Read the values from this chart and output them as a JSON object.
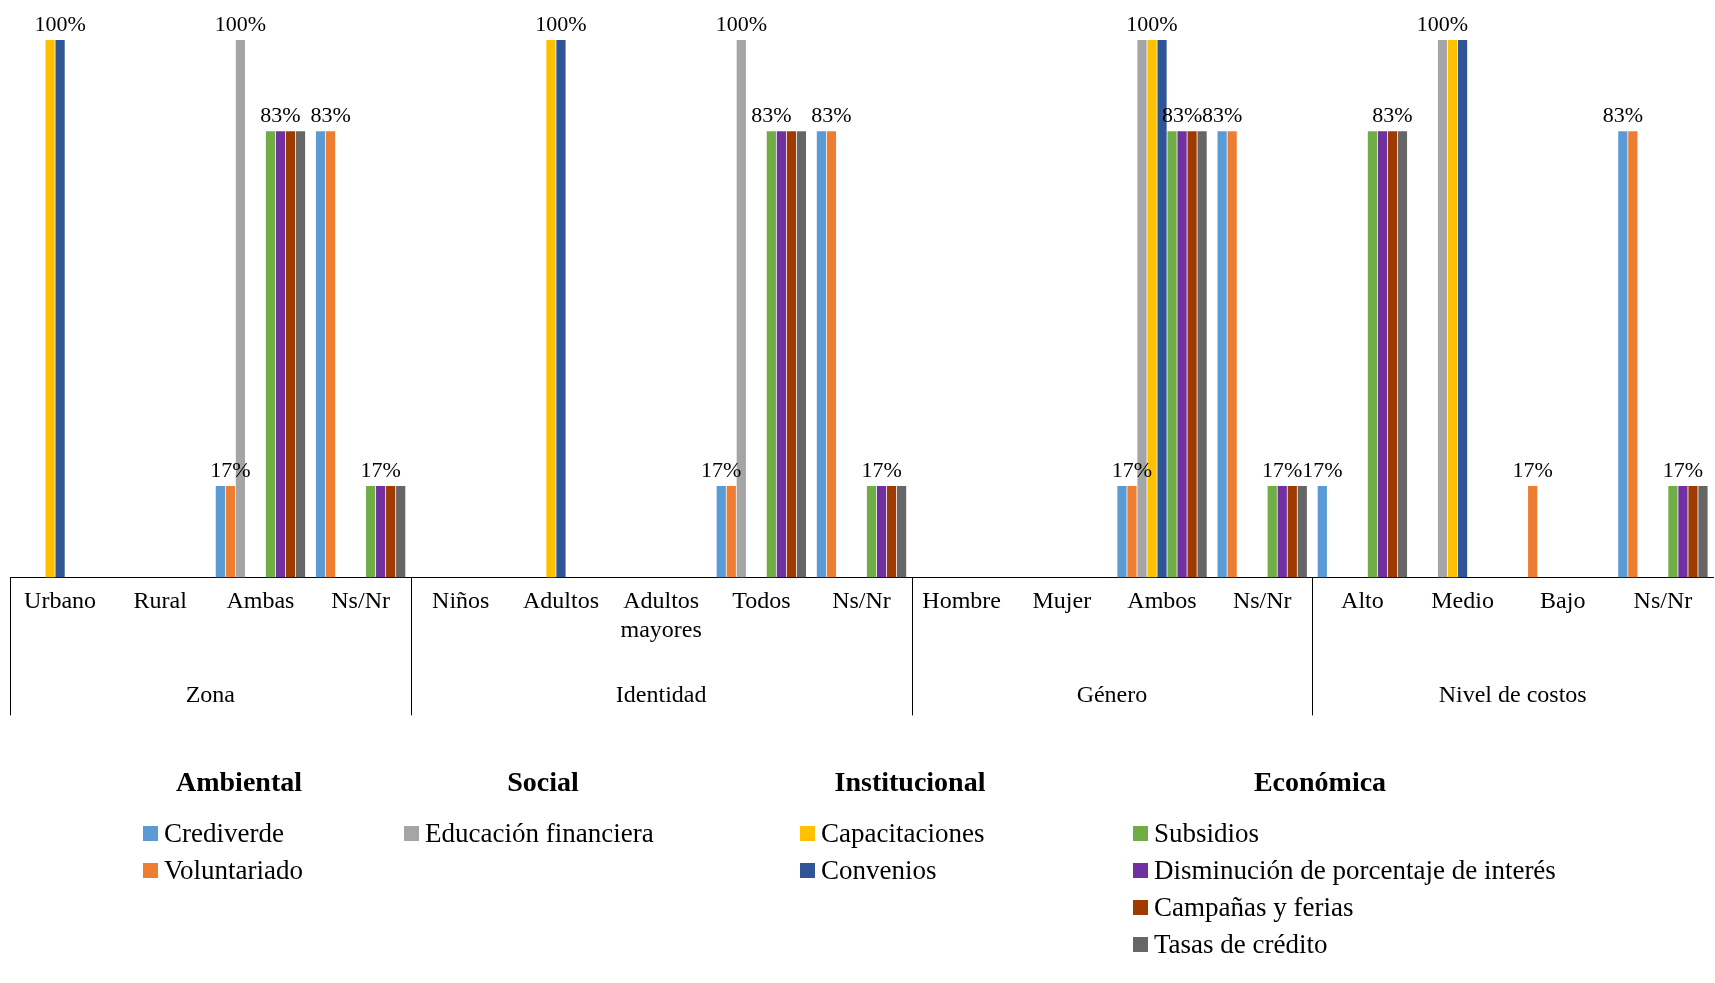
{
  "chart_data": {
    "type": "bar",
    "categories": [
      "Urbano",
      "Rural",
      "Ambas",
      "Ns/Nr",
      "Niños",
      "Adultos",
      "Adultos mayores",
      "Todos",
      "Ns/Nr",
      "Hombre",
      "Mujer",
      "Ambos",
      "Ns/Nr",
      "Alto",
      "Medio",
      "Bajo",
      "Ns/Nr"
    ],
    "series": [
      {
        "name": "Crediverde",
        "color": "#5b9bd5",
        "values": [
          null,
          null,
          17,
          83,
          null,
          null,
          null,
          17,
          83,
          null,
          null,
          17,
          83,
          17,
          null,
          null,
          83
        ],
        "value_labels": [
          null,
          null,
          null,
          null,
          null,
          null,
          null,
          "17%",
          null,
          null,
          null,
          null,
          "83%",
          "17%",
          null,
          null,
          "83%"
        ]
      },
      {
        "name": "Voluntariado",
        "color": "#ed7d31",
        "values": [
          null,
          null,
          17,
          83,
          null,
          null,
          null,
          17,
          83,
          null,
          null,
          17,
          83,
          null,
          null,
          17,
          83
        ],
        "value_labels": [
          null,
          null,
          "17%",
          "83%",
          null,
          null,
          null,
          null,
          "83%",
          null,
          null,
          "17%",
          null,
          null,
          null,
          "17%",
          null
        ]
      },
      {
        "name": "Educación financiera",
        "color": "#a5a5a5",
        "values": [
          null,
          null,
          100,
          null,
          null,
          null,
          null,
          100,
          null,
          null,
          null,
          100,
          null,
          null,
          100,
          null,
          null
        ],
        "value_labels": [
          null,
          null,
          "100%",
          null,
          null,
          null,
          null,
          "100%",
          null,
          null,
          null,
          null,
          null,
          null,
          "100%",
          null,
          null
        ]
      },
      {
        "name": "Capacitaciones",
        "color": "#ffc000",
        "values": [
          100,
          null,
          null,
          null,
          null,
          100,
          null,
          null,
          null,
          null,
          null,
          100,
          null,
          null,
          100,
          null,
          null
        ],
        "value_labels": [
          null,
          null,
          null,
          null,
          null,
          null,
          null,
          null,
          null,
          null,
          null,
          "100%",
          null,
          null,
          null,
          null,
          null
        ]
      },
      {
        "name": "Convenios",
        "color": "#2f5597",
        "values": [
          100,
          null,
          null,
          null,
          null,
          100,
          null,
          null,
          null,
          null,
          null,
          100,
          null,
          null,
          100,
          null,
          null
        ],
        "value_labels": [
          "100%",
          null,
          null,
          null,
          null,
          "100%",
          null,
          null,
          null,
          null,
          null,
          null,
          null,
          null,
          null,
          null,
          null
        ]
      },
      {
        "name": "Subsidios",
        "color": "#70ad47",
        "values": [
          null,
          null,
          83,
          17,
          null,
          null,
          null,
          83,
          17,
          null,
          null,
          83,
          17,
          83,
          null,
          null,
          17
        ],
        "value_labels": [
          null,
          null,
          null,
          null,
          null,
          null,
          null,
          "83%",
          null,
          null,
          null,
          null,
          null,
          null,
          null,
          null,
          null
        ]
      },
      {
        "name": "Disminución de porcentaje de interés",
        "color": "#7030a0",
        "values": [
          null,
          null,
          83,
          17,
          null,
          null,
          null,
          83,
          17,
          null,
          null,
          83,
          17,
          83,
          null,
          null,
          17
        ],
        "value_labels": [
          null,
          null,
          "83%",
          "17%",
          null,
          null,
          null,
          null,
          "17%",
          null,
          null,
          "83%",
          "17%",
          null,
          null,
          null,
          "17%"
        ]
      },
      {
        "name": "Campañas y ferias",
        "color": "#9e3b00",
        "values": [
          null,
          null,
          83,
          17,
          null,
          null,
          null,
          83,
          17,
          null,
          null,
          83,
          17,
          83,
          null,
          null,
          17
        ],
        "value_labels": [
          null,
          null,
          null,
          null,
          null,
          null,
          null,
          null,
          null,
          null,
          null,
          null,
          null,
          "83%",
          null,
          null,
          null
        ]
      },
      {
        "name": "Tasas de crédito",
        "color": "#666666",
        "values": [
          null,
          null,
          83,
          17,
          null,
          null,
          null,
          83,
          17,
          null,
          null,
          83,
          17,
          83,
          null,
          null,
          17
        ]
      }
    ],
    "ylim": [
      0,
      100
    ],
    "tick_labels": "x",
    "grid": false,
    "legend": "bottom",
    "annotations": [
      "Zona",
      "Identidad",
      "Género",
      "Nivel de costos",
      "Ambiental",
      "Social",
      "Institucional",
      "Económica"
    ]
  }
}
